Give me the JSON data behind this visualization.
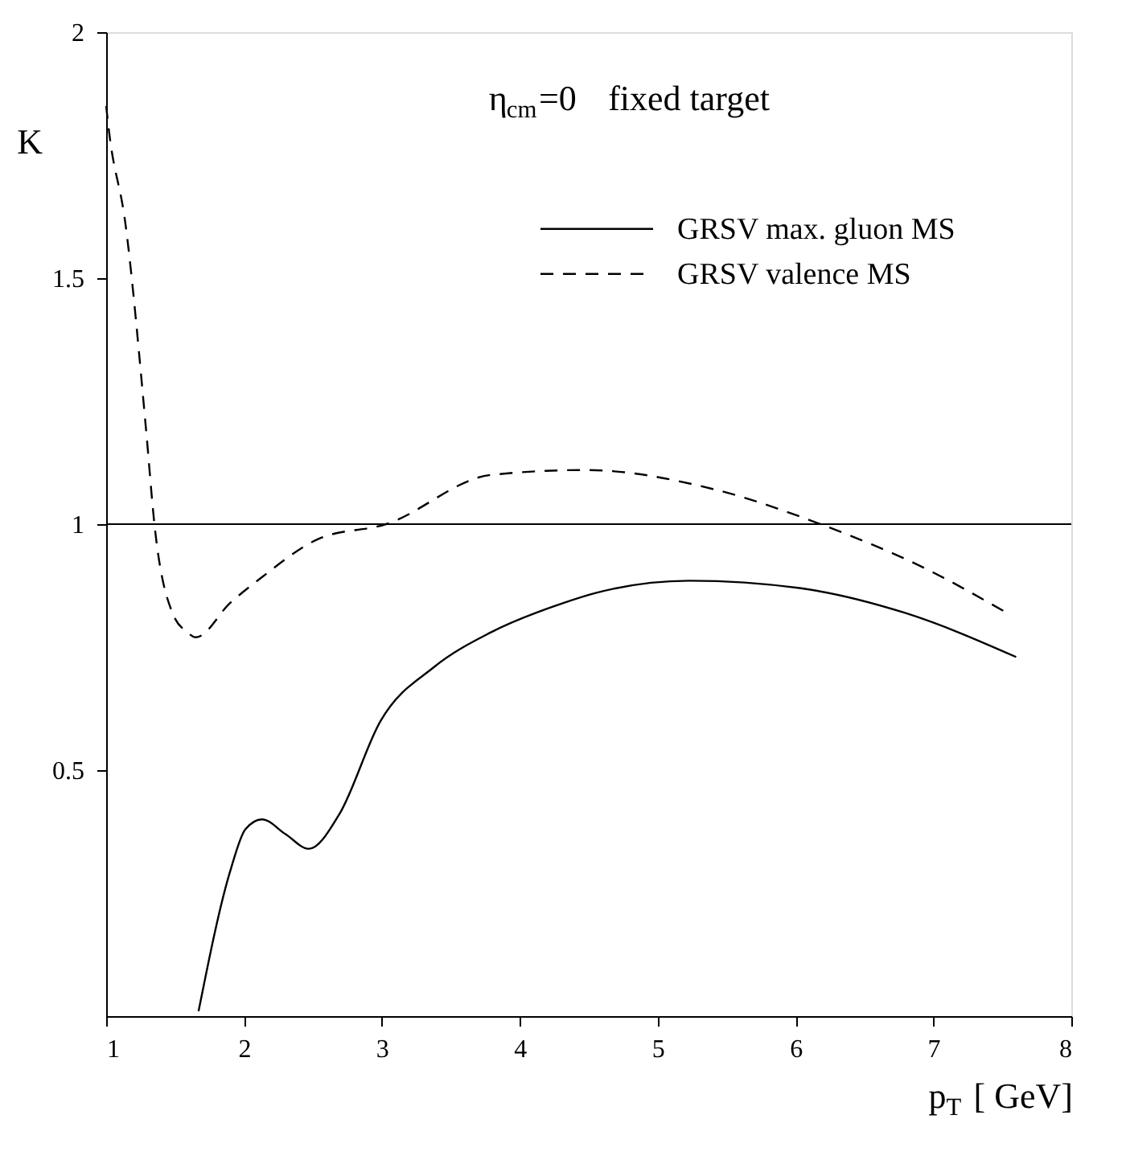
{
  "chart_data": {
    "type": "line",
    "xlabel": "p$_{T}$ [ GeV]",
    "ylabel": "K",
    "annotations": [
      "η$_{cm}$=0   fixed target"
    ],
    "xlim": [
      1,
      8
    ],
    "xticks": [
      1,
      2,
      3,
      4,
      5,
      6,
      7,
      8
    ],
    "ylim": [
      0,
      2
    ],
    "yticks": [
      0.5,
      1,
      1.5,
      2
    ],
    "grid": false,
    "legend": "top right",
    "ref_lines": [
      {
        "axis": "y",
        "value": 1,
        "label": null,
        "color": "#000000",
        "line_style": "solid"
      }
    ],
    "series": [
      {
        "name": "GRSV max. gluon MS",
        "color": "#000000",
        "line_style": "solid",
        "x": [
          1.67,
          1.9,
          2.01,
          2.13,
          2.3,
          2.47,
          2.69,
          2.99,
          3.38,
          3.79,
          4.32,
          4.55,
          5.23,
          6.03,
          6.79,
          7.6
        ],
        "values": [
          0.01,
          0.295,
          0.38,
          0.4,
          0.37,
          0.34,
          0.41,
          0.6,
          0.71,
          0.78,
          0.84,
          0.86,
          0.885,
          0.87,
          0.82,
          0.73
        ]
      },
      {
        "name": "GRSV valence MS",
        "color": "#000000",
        "line_style": "dashed",
        "x": [
          1.0,
          1.02,
          1.14,
          1.29,
          1.35,
          1.48,
          1.59,
          1.65,
          1.9,
          2.12,
          2.54,
          3.03,
          3.79,
          4.47,
          5.42,
          6.18,
          6.94,
          7.53
        ],
        "values": [
          1.85,
          1.8,
          1.61,
          1.19,
          1.0,
          0.82,
          0.78,
          0.77,
          0.84,
          0.89,
          0.97,
          1.0,
          1.1,
          1.11,
          1.07,
          1.0,
          0.91,
          0.82
        ]
      }
    ]
  }
}
